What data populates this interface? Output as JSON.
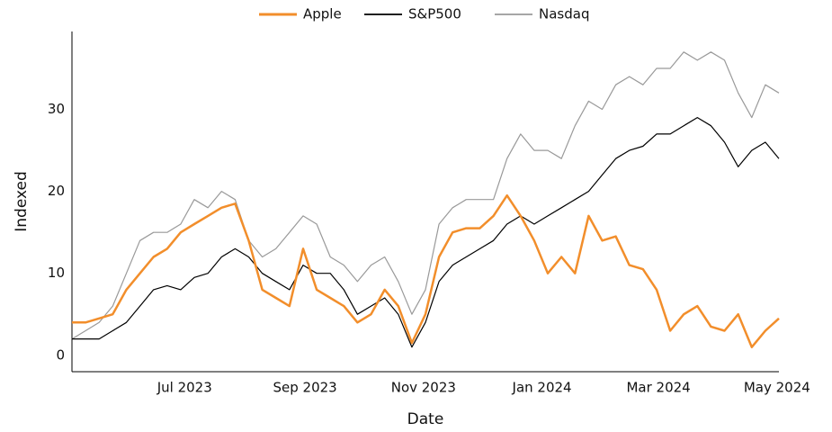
{
  "chart_data": {
    "type": "line",
    "x_label": "Date",
    "y_label": "Indexed",
    "x": [
      "2023-05-04",
      "2023-05-11",
      "2023-05-18",
      "2023-05-25",
      "2023-06-01",
      "2023-06-08",
      "2023-06-15",
      "2023-06-22",
      "2023-06-29",
      "2023-07-06",
      "2023-07-13",
      "2023-07-20",
      "2023-07-27",
      "2023-08-03",
      "2023-08-10",
      "2023-08-17",
      "2023-08-24",
      "2023-08-31",
      "2023-09-07",
      "2023-09-14",
      "2023-09-21",
      "2023-09-28",
      "2023-10-05",
      "2023-10-12",
      "2023-10-19",
      "2023-10-26",
      "2023-11-02",
      "2023-11-09",
      "2023-11-16",
      "2023-11-23",
      "2023-11-30",
      "2023-12-07",
      "2023-12-14",
      "2023-12-21",
      "2023-12-28",
      "2024-01-04",
      "2024-01-11",
      "2024-01-18",
      "2024-01-25",
      "2024-02-01",
      "2024-02-08",
      "2024-02-15",
      "2024-02-22",
      "2024-02-29",
      "2024-03-07",
      "2024-03-14",
      "2024-03-21",
      "2024-03-28",
      "2024-04-04",
      "2024-04-11",
      "2024-04-18",
      "2024-04-25",
      "2024-05-02"
    ],
    "series": [
      {
        "name": "Apple",
        "color": "#f28e2b",
        "width": 2.5,
        "values": [
          4,
          4,
          4.5,
          5,
          8,
          10,
          12,
          13,
          15,
          16,
          17,
          18,
          18.5,
          14,
          8,
          7,
          6,
          13,
          8,
          7,
          6,
          4,
          5,
          8,
          6,
          1.5,
          5,
          12,
          15,
          15.5,
          15.5,
          17,
          19.5,
          17,
          14,
          10,
          12,
          10,
          17,
          14,
          14.5,
          11,
          10.5,
          8,
          3,
          5,
          6,
          3.5,
          3,
          5,
          1,
          3,
          4.5
        ]
      },
      {
        "name": "S&P500",
        "color": "#000000",
        "width": 1.2,
        "values": [
          2,
          2,
          2,
          3,
          4,
          6,
          8,
          8.5,
          8,
          9.5,
          10,
          12,
          13,
          12,
          10,
          9,
          8,
          11,
          10,
          10,
          8,
          5,
          6,
          7,
          5,
          1,
          4,
          9,
          11,
          12,
          13,
          14,
          16,
          17,
          16,
          17,
          18,
          19,
          20,
          22,
          24,
          25,
          25.5,
          27,
          27,
          28,
          29,
          28,
          26,
          23,
          25,
          26,
          24
        ]
      },
      {
        "name": "Nasdaq",
        "color": "#999999",
        "width": 1.2,
        "values": [
          2,
          3,
          4,
          6,
          10,
          14,
          15,
          15,
          16,
          19,
          18,
          20,
          19,
          14,
          12,
          13,
          15,
          17,
          16,
          12,
          11,
          9,
          11,
          12,
          9,
          5,
          8,
          16,
          18,
          19,
          19,
          19,
          24,
          27,
          25,
          25,
          24,
          28,
          31,
          30,
          33,
          34,
          33,
          35,
          35,
          37,
          36,
          37,
          36,
          32,
          29,
          33,
          32
        ]
      }
    ],
    "xlim": [
      "2023-05-04",
      "2024-05-02"
    ],
    "xticks": [
      {
        "value": "2023-07-01",
        "label": "Jul 2023"
      },
      {
        "value": "2023-09-01",
        "label": "Sep 2023"
      },
      {
        "value": "2023-11-01",
        "label": "Nov 2023"
      },
      {
        "value": "2024-01-01",
        "label": "Jan 2024"
      },
      {
        "value": "2024-03-01",
        "label": "Mar 2024"
      },
      {
        "value": "2024-05-01",
        "label": "May 2024"
      }
    ],
    "ylim": [
      -2,
      39.5
    ],
    "yticks": [
      0,
      10,
      20,
      30
    ],
    "legend": "top",
    "grid": false
  }
}
